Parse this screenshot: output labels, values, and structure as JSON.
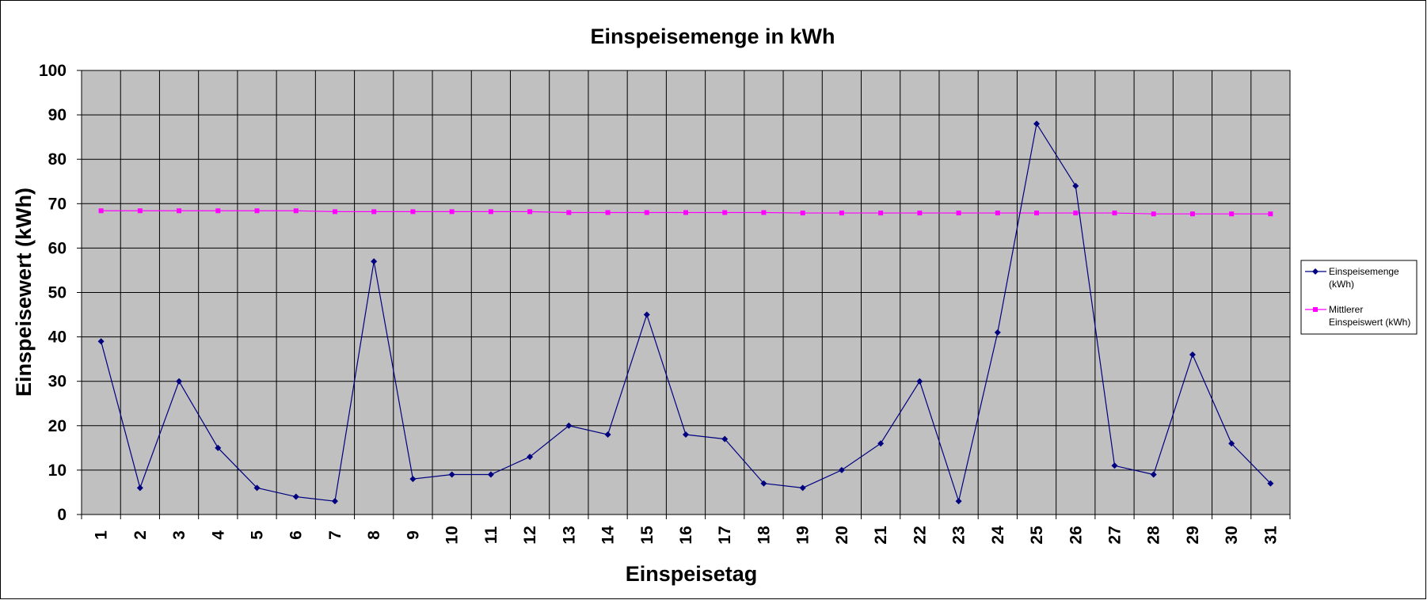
{
  "chart_data": {
    "type": "line",
    "title": "Einspeisemenge in kWh",
    "xlabel": "Einspeisetag",
    "ylabel": "Einspeisewert  (kWh)",
    "categories": [
      "1",
      "2",
      "3",
      "4",
      "5",
      "6",
      "7",
      "8",
      "9",
      "10",
      "11",
      "12",
      "13",
      "14",
      "15",
      "16",
      "17",
      "18",
      "19",
      "20",
      "21",
      "22",
      "23",
      "24",
      "25",
      "26",
      "27",
      "28",
      "29",
      "30",
      "31"
    ],
    "ylim": [
      0,
      100
    ],
    "yticks": [
      "0",
      "10",
      "20",
      "30",
      "40",
      "50",
      "60",
      "70",
      "80",
      "90",
      "100"
    ],
    "grid": true,
    "legend_position": "right",
    "plot_background": "#c0c0c0",
    "series": [
      {
        "name": "Einspeisemenge (kWh)",
        "legend_lines": [
          "Einspeisemenge",
          "(kWh)"
        ],
        "color": "#000080",
        "marker": "diamond",
        "values": [
          39,
          6,
          30,
          15,
          6,
          4,
          3,
          57,
          8,
          9,
          9,
          13,
          20,
          18,
          45,
          18,
          17,
          7,
          6,
          10,
          16,
          30,
          3,
          41,
          88,
          74,
          11,
          9,
          36,
          16,
          7
        ]
      },
      {
        "name": "Mittlerer Einspeiswert (kWh)",
        "legend_lines": [
          "Mittlerer",
          "Einspeiswert (kWh)"
        ],
        "color": "#ff00ff",
        "marker": "square",
        "values": [
          68.4,
          68.4,
          68.4,
          68.4,
          68.4,
          68.4,
          68.2,
          68.2,
          68.2,
          68.2,
          68.2,
          68.2,
          68.0,
          68.0,
          68.0,
          68.0,
          68.0,
          68.0,
          67.9,
          67.9,
          67.9,
          67.9,
          67.9,
          67.9,
          67.9,
          67.9,
          67.9,
          67.7,
          67.7,
          67.7,
          67.7
        ]
      }
    ]
  }
}
